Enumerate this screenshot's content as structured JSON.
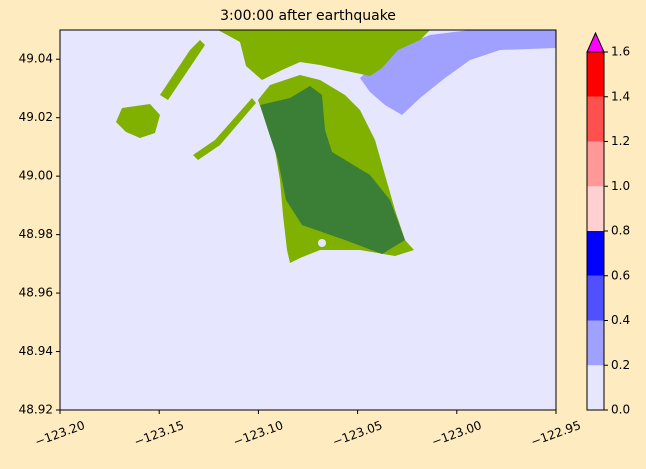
{
  "chart_data": {
    "type": "map",
    "title": "3:00:00 after earthquake",
    "xlim": [
      -123.2,
      -122.95
    ],
    "xticks": [
      {
        "value": -123.2,
        "label": "−123.20"
      },
      {
        "value": -123.15,
        "label": "−123.15"
      },
      {
        "value": -123.1,
        "label": "−123.10"
      },
      {
        "value": -123.05,
        "label": "−123.05"
      },
      {
        "value": -123.0,
        "label": "−123.00"
      },
      {
        "value": -122.95,
        "label": "−122.95"
      }
    ],
    "ylim": [
      48.92,
      49.05
    ],
    "yticks": [
      48.92,
      48.94,
      48.96,
      48.98,
      {
        "value": 49.0,
        "label": "49.00"
      },
      49.02,
      49.04
    ],
    "colorbar": {
      "lim": [
        0,
        1.6
      ],
      "ticks": [
        {
          "value": 0,
          "label": "0.0"
        },
        0.2,
        0.4,
        0.6,
        0.8,
        {
          "value": 1,
          "label": "1.0"
        },
        1.2,
        1.4,
        1.6
      ],
      "colors": [
        "#e6e6ff",
        "#a0a0ff",
        "#5050ff",
        "#0000ff",
        "#ffd0d0",
        "#ff9898",
        "#ff5050",
        "#ff0000"
      ],
      "over_color": "#ff00ff"
    }
  }
}
